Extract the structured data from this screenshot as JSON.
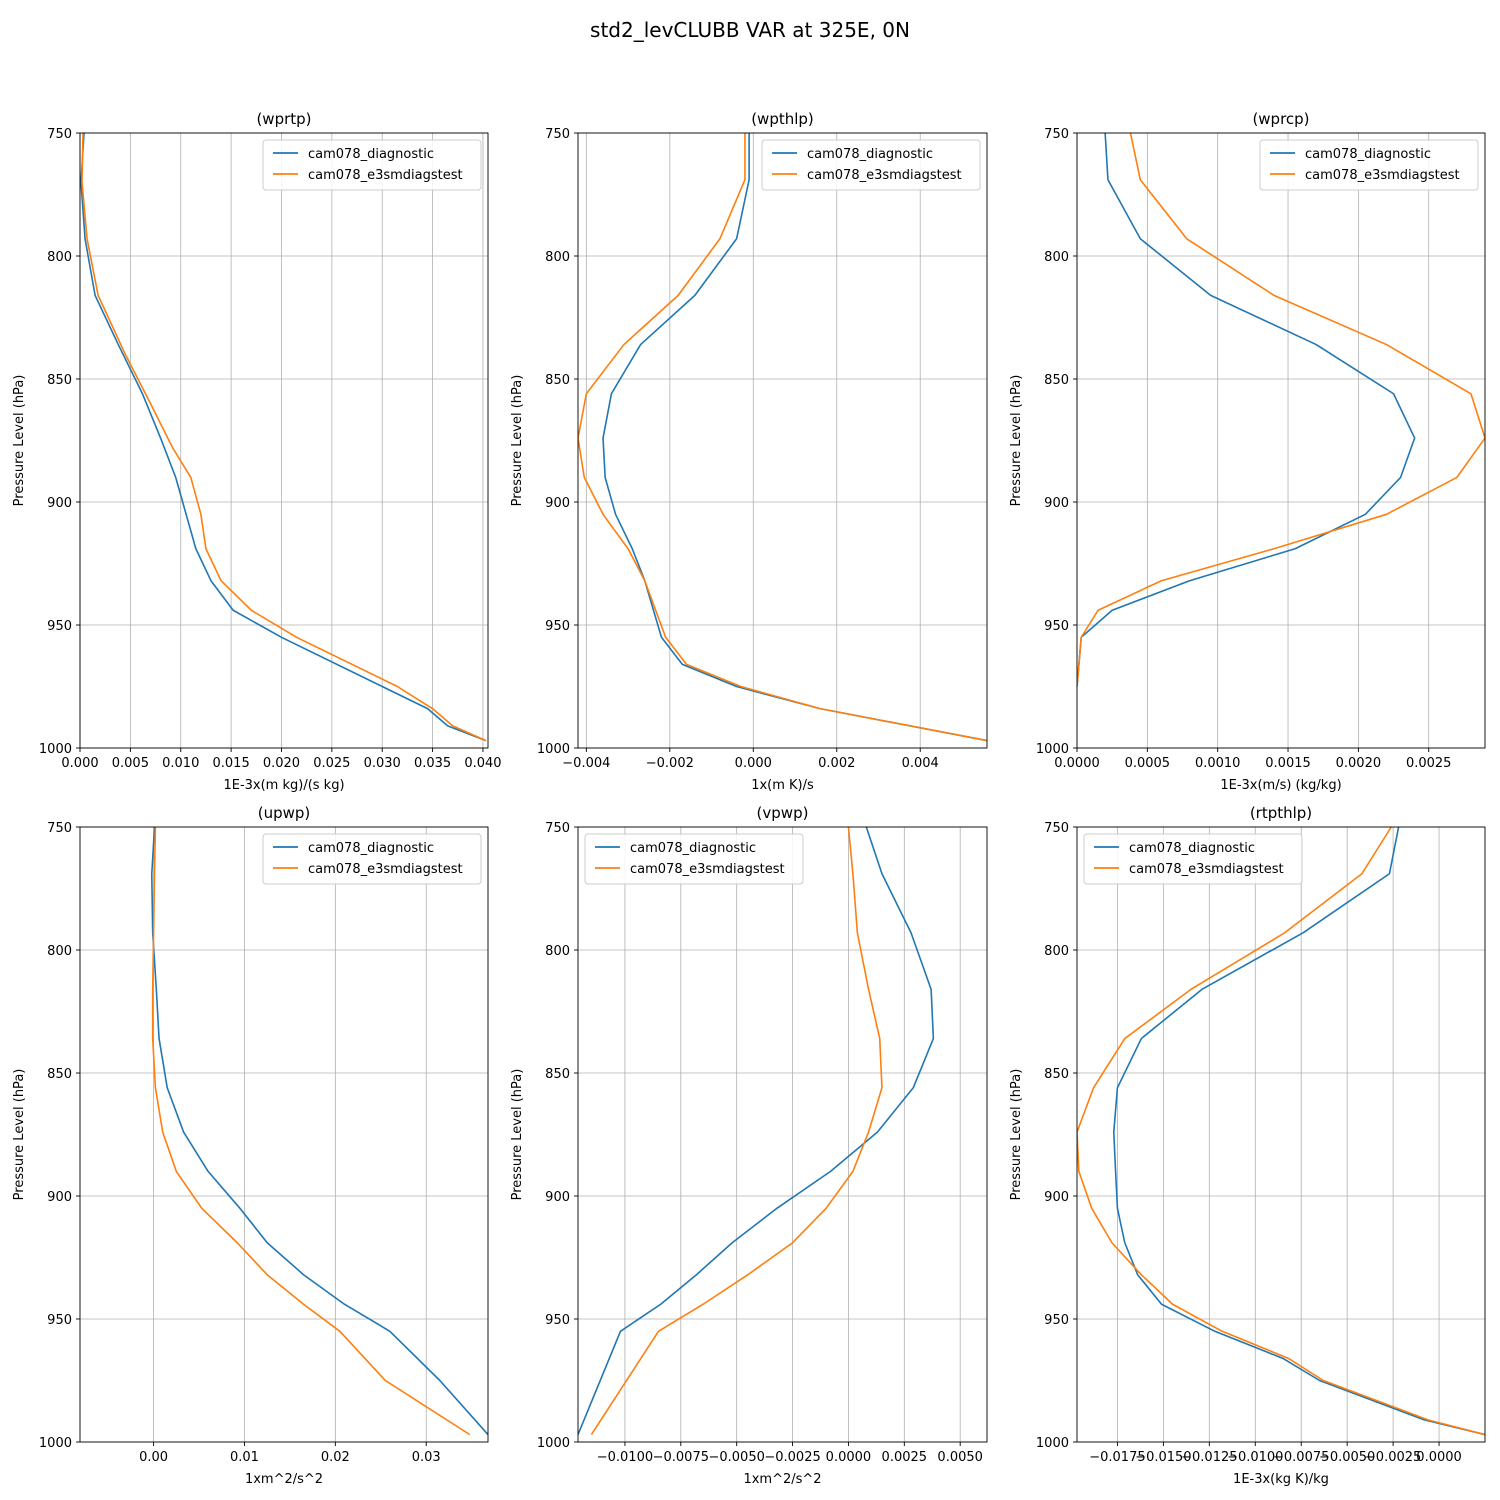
{
  "figure_title": "std2_levCLUBB VAR at 325E, 0N",
  "colors": {
    "diagnostic": "#1f77b4",
    "test": "#ff7f0e",
    "grid": "#b0b0b0"
  },
  "chart_data": [
    {
      "type": "line",
      "title": "(wprtp)",
      "xlabel": "1E-3x(m kg)/(s kg)",
      "ylabel": "Pressure Level (hPa)",
      "xlim": [
        0.0,
        0.0405
      ],
      "ylim": [
        1000,
        750
      ],
      "xticks": [
        0.0,
        0.005,
        0.01,
        0.015,
        0.02,
        0.025,
        0.03,
        0.035,
        0.04
      ],
      "xtick_labels": [
        "0.000",
        "0.005",
        "0.010",
        "0.015",
        "0.020",
        "0.025",
        "0.030",
        "0.035",
        "0.040"
      ],
      "yticks": [
        750,
        800,
        850,
        900,
        950,
        1000
      ],
      "ytick_labels": [
        "750",
        "800",
        "850",
        "900",
        "950",
        "1000"
      ],
      "grid": true,
      "legend": "top-right",
      "series": [
        {
          "name": "cam078_diagnostic",
          "color": "#1f77b4",
          "x": [
            0.0004,
            0.0001,
            0.0005,
            0.0015,
            0.0038,
            0.0062,
            0.008,
            0.0095,
            0.0115,
            0.013,
            0.0152,
            0.02,
            0.03,
            0.0345,
            0.0365,
            0.0403
          ],
          "y": [
            750,
            770,
            793,
            816,
            836,
            856,
            874,
            890,
            919,
            932,
            944,
            955,
            975,
            984,
            991,
            997
          ]
        },
        {
          "name": "cam078_e3smdiagstest",
          "color": "#ff7f0e",
          "x": [
            0.0003,
            0.0002,
            0.0007,
            0.0018,
            0.0045,
            0.007,
            0.0092,
            0.011,
            0.012,
            0.0125,
            0.014,
            0.017,
            0.0215,
            0.0315,
            0.035,
            0.037,
            0.0403
          ],
          "y": [
            750,
            770,
            793,
            816,
            840,
            860,
            878,
            890,
            905,
            919,
            932,
            944,
            955,
            975,
            984,
            991,
            997
          ]
        }
      ]
    },
    {
      "type": "line",
      "title": "(wpthlp)",
      "xlabel": "1x(m K)/s",
      "ylabel": "Pressure Level (hPa)",
      "xlim": [
        -0.0042,
        0.0056
      ],
      "ylim": [
        1000,
        750
      ],
      "xticks": [
        -0.004,
        -0.002,
        0.0,
        0.002,
        0.004
      ],
      "xtick_labels": [
        "−0.004",
        "−0.002",
        "0.000",
        "0.002",
        "0.004"
      ],
      "yticks": [
        750,
        800,
        850,
        900,
        950,
        1000
      ],
      "ytick_labels": [
        "750",
        "800",
        "850",
        "900",
        "950",
        "1000"
      ],
      "grid": true,
      "legend": "top-right",
      "series": [
        {
          "name": "cam078_diagnostic",
          "color": "#1f77b4",
          "x": [
            -0.0001,
            -0.0001,
            -0.0004,
            -0.0014,
            -0.0027,
            -0.0034,
            -0.0036,
            -0.00355,
            -0.0033,
            -0.0029,
            -0.0026,
            -0.0022,
            -0.0017,
            -0.0004,
            0.0016,
            0.0056
          ],
          "y": [
            750,
            769,
            793,
            816,
            836,
            856,
            874,
            890,
            905,
            919,
            932,
            955,
            966,
            975,
            984,
            997
          ]
        },
        {
          "name": "cam078_e3smdiagstest",
          "color": "#ff7f0e",
          "x": [
            -0.0002,
            -0.0002,
            -0.0008,
            -0.0018,
            -0.0031,
            -0.004,
            -0.0042,
            -0.00405,
            -0.0036,
            -0.003,
            -0.0026,
            -0.0021,
            -0.0016,
            -0.0003,
            0.0016,
            0.0056
          ],
          "y": [
            750,
            769,
            793,
            816,
            836,
            856,
            874,
            890,
            905,
            919,
            932,
            955,
            966,
            975,
            984,
            997
          ]
        }
      ]
    },
    {
      "type": "line",
      "title": "(wprcp)",
      "xlabel": "1E-3x(m/s) (kg/kg)",
      "ylabel": "Pressure Level (hPa)",
      "xlim": [
        0.0,
        0.0029
      ],
      "ylim": [
        1000,
        750
      ],
      "xticks": [
        0.0,
        0.0005,
        0.001,
        0.0015,
        0.002,
        0.0025
      ],
      "xtick_labels": [
        "0.0000",
        "0.0005",
        "0.0010",
        "0.0015",
        "0.0020",
        "0.0025"
      ],
      "yticks": [
        750,
        800,
        850,
        900,
        950,
        1000
      ],
      "ytick_labels": [
        "750",
        "800",
        "850",
        "900",
        "950",
        "1000"
      ],
      "grid": true,
      "legend": "top-right",
      "series": [
        {
          "name": "cam078_diagnostic",
          "color": "#1f77b4",
          "x": [
            0.0002,
            0.00022,
            0.00045,
            0.00095,
            0.0017,
            0.00225,
            0.0024,
            0.0023,
            0.00205,
            0.00155,
            0.0008,
            0.00025,
            3e-05,
            0.0
          ],
          "y": [
            750,
            769,
            793,
            816,
            836,
            856,
            874,
            890,
            905,
            919,
            932,
            944,
            955,
            975
          ]
        },
        {
          "name": "cam078_e3smdiagstest",
          "color": "#ff7f0e",
          "x": [
            0.00038,
            0.00045,
            0.00078,
            0.0014,
            0.0022,
            0.0028,
            0.0029,
            0.0027,
            0.0022,
            0.0014,
            0.0006,
            0.00015,
            3e-05,
            0.0
          ],
          "y": [
            750,
            769,
            793,
            816,
            836,
            856,
            874,
            890,
            905,
            919,
            932,
            944,
            955,
            975
          ]
        }
      ]
    },
    {
      "type": "line",
      "title": "(upwp)",
      "xlabel": "1xm^2/s^2",
      "ylabel": "Pressure Level (hPa)",
      "xlim": [
        -0.0081,
        0.0368
      ],
      "ylim": [
        1000,
        750
      ],
      "xticks": [
        0.0,
        0.01,
        0.02,
        0.03
      ],
      "xtick_labels": [
        "0.00",
        "0.01",
        "0.02",
        "0.03"
      ],
      "yticks": [
        750,
        800,
        850,
        900,
        950,
        1000
      ],
      "ytick_labels": [
        "750",
        "800",
        "850",
        "900",
        "950",
        "1000"
      ],
      "grid": true,
      "legend": "top-right",
      "series": [
        {
          "name": "cam078_diagnostic",
          "color": "#1f77b4",
          "x": [
            0.0001,
            -0.0002,
            -0.0001,
            0.0003,
            0.0006,
            0.0015,
            0.0033,
            0.006,
            0.0095,
            0.0125,
            0.0165,
            0.021,
            0.026,
            0.0315,
            0.0368
          ],
          "y": [
            750,
            769,
            793,
            816,
            836,
            856,
            874,
            890,
            905,
            919,
            932,
            944,
            955,
            975,
            997
          ]
        },
        {
          "name": "cam078_e3smdiagstest",
          "color": "#ff7f0e",
          "x": [
            0.0002,
            0.0001,
            0.0,
            -0.0001,
            -0.0001,
            0.0002,
            0.001,
            0.0025,
            0.0053,
            0.0092,
            0.0125,
            0.0165,
            0.0205,
            0.0255,
            0.0348
          ],
          "y": [
            750,
            769,
            793,
            816,
            836,
            856,
            874,
            890,
            905,
            919,
            932,
            944,
            955,
            975,
            997
          ]
        }
      ]
    },
    {
      "type": "line",
      "title": "(vpwp)",
      "xlabel": "1xm^2/s^2",
      "ylabel": "Pressure Level (hPa)",
      "xlim": [
        -0.0121,
        0.0062
      ],
      "ylim": [
        1000,
        750
      ],
      "xticks": [
        -0.01,
        -0.0075,
        -0.005,
        -0.0025,
        0.0,
        0.0025,
        0.005
      ],
      "xtick_labels": [
        "−0.0100",
        "−0.0075",
        "−0.0050",
        "−0.0025",
        "0.0000",
        "0.0025",
        "0.0050"
      ],
      "yticks": [
        750,
        800,
        850,
        900,
        950,
        1000
      ],
      "ytick_labels": [
        "750",
        "800",
        "850",
        "900",
        "950",
        "1000"
      ],
      "grid": true,
      "legend": "top-left",
      "series": [
        {
          "name": "cam078_diagnostic",
          "color": "#1f77b4",
          "x": [
            0.0008,
            0.0015,
            0.0028,
            0.0037,
            0.0038,
            0.0029,
            0.0013,
            -0.0008,
            -0.0032,
            -0.0052,
            -0.0068,
            -0.0084,
            -0.0102,
            -0.0121
          ],
          "y": [
            750,
            769,
            793,
            816,
            836,
            856,
            874,
            890,
            905,
            919,
            932,
            944,
            955,
            997
          ]
        },
        {
          "name": "cam078_e3smdiagstest",
          "color": "#ff7f0e",
          "x": [
            0.0,
            0.0002,
            0.0004,
            0.0009,
            0.0014,
            0.0015,
            0.0009,
            0.0002,
            -0.001,
            -0.0025,
            -0.0045,
            -0.0065,
            -0.0085,
            -0.0115
          ],
          "y": [
            750,
            769,
            793,
            816,
            836,
            856,
            874,
            890,
            905,
            919,
            932,
            944,
            955,
            997
          ]
        }
      ]
    },
    {
      "type": "line",
      "title": "(rtpthlp)",
      "xlabel": "1E-3x(kg K)/kg",
      "ylabel": "Pressure Level (hPa)",
      "xlim": [
        -0.0197,
        0.0025
      ],
      "ylim": [
        1000,
        750
      ],
      "xticks": [
        -0.0175,
        -0.015,
        -0.0125,
        -0.01,
        -0.0075,
        -0.005,
        -0.0025,
        0.0
      ],
      "xtick_labels": [
        "−0.0175",
        "−0.0150",
        "−0.0125",
        "−0.0100",
        "−0.0075",
        "−0.0050",
        "−0.0025",
        "0.0000"
      ],
      "yticks": [
        750,
        800,
        850,
        900,
        950,
        1000
      ],
      "ytick_labels": [
        "750",
        "800",
        "850",
        "900",
        "950",
        "1000"
      ],
      "grid": true,
      "legend": "top-left",
      "series": [
        {
          "name": "cam078_diagnostic",
          "color": "#1f77b4",
          "x": [
            -0.0022,
            -0.0027,
            -0.0074,
            -0.0129,
            -0.0162,
            -0.0175,
            -0.0177,
            -0.0176,
            -0.0175,
            -0.0171,
            -0.0164,
            -0.0151,
            -0.0122,
            -0.0085,
            -0.0065,
            -0.0008,
            0.0025
          ],
          "y": [
            750,
            769,
            793,
            816,
            836,
            856,
            874,
            890,
            905,
            919,
            932,
            944,
            955,
            966,
            975,
            991,
            997
          ]
        },
        {
          "name": "cam078_e3smdiagstest",
          "color": "#ff7f0e",
          "x": [
            -0.0026,
            -0.0042,
            -0.0084,
            -0.0135,
            -0.0171,
            -0.0188,
            -0.0197,
            -0.0196,
            -0.0189,
            -0.0178,
            -0.0162,
            -0.0145,
            -0.0118,
            -0.0082,
            -0.0063,
            -0.0006,
            0.0025
          ],
          "y": [
            750,
            769,
            793,
            816,
            836,
            856,
            874,
            890,
            905,
            919,
            932,
            944,
            955,
            966,
            975,
            991,
            997
          ]
        }
      ]
    }
  ]
}
